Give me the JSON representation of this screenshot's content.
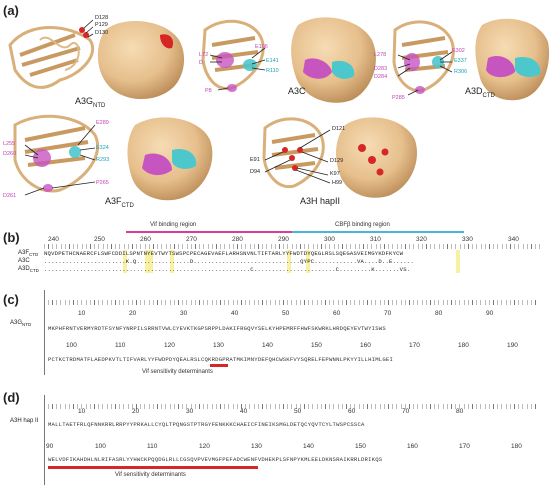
{
  "panel_labels": {
    "a": "(a)",
    "b": "(b)",
    "c": "(c)",
    "d": "(d)"
  },
  "panel_a": {
    "proteins": [
      {
        "name": "A3G",
        "sub": "NTD",
        "labels": [
          {
            "text": "D128",
            "color": "blk"
          },
          {
            "text": "P129",
            "color": "blk"
          },
          {
            "text": "D130",
            "color": "blk"
          }
        ]
      },
      {
        "name": "A3C",
        "sub": "",
        "labels": [
          {
            "text": "E106",
            "color": "mag"
          },
          {
            "text": "L72",
            "color": "mag"
          },
          {
            "text": "D",
            "color": "mag"
          },
          {
            "text": "E141",
            "color": "cyan"
          },
          {
            "text": "R110",
            "color": "cyan"
          },
          {
            "text": "P8",
            "color": "mag"
          }
        ]
      },
      {
        "name": "A3D",
        "sub": "CTD",
        "labels": [
          {
            "text": "E302",
            "color": "mag"
          },
          {
            "text": "L278",
            "color": "mag"
          },
          {
            "text": "E337",
            "color": "cyan"
          },
          {
            "text": "D283",
            "color": "mag"
          },
          {
            "text": "R306",
            "color": "cyan"
          },
          {
            "text": "D284",
            "color": "mag"
          },
          {
            "text": "P285",
            "color": "mag"
          }
        ]
      },
      {
        "name": "A3F",
        "sub": "CTD",
        "labels": [
          {
            "text": "E289",
            "color": "mag"
          },
          {
            "text": "L255",
            "color": "mag"
          },
          {
            "text": "E324",
            "color": "cyan"
          },
          {
            "text": "D260",
            "color": "mag"
          },
          {
            "text": "R293",
            "color": "cyan"
          },
          {
            "text": "D261",
            "color": "mag"
          },
          {
            "text": "P265",
            "color": "mag"
          }
        ]
      },
      {
        "name": "A3H hapII",
        "sub": "",
        "labels": [
          {
            "text": "D121",
            "color": "blk"
          },
          {
            "text": "E91",
            "color": "blk"
          },
          {
            "text": "D129",
            "color": "blk"
          },
          {
            "text": "D94",
            "color": "blk"
          },
          {
            "text": "K97",
            "color": "blk"
          },
          {
            "text": "H99",
            "color": "blk"
          }
        ]
      }
    ]
  },
  "panel_b": {
    "vif_region": "Vif binding region",
    "cbf_region": "CBFβ binding region",
    "numbers": [
      "240",
      "250",
      "260",
      "270",
      "280",
      "290",
      "300",
      "310",
      "320",
      "330",
      "340"
    ],
    "rows": [
      {
        "name": "A3F",
        "sub": "CTD",
        "seq": "NQVDPETHCNAERCFLSWFCDDILSPNTNYEVTWYTSWSPCPECAGEVAEFLARHSNVNLTIFTARLYYFWDTDYQEGLRSLSQEGASVEIMGYKDFKYCW"
      },
      {
        "name": "A3C",
        "sub": "",
        "seq": ".......................K.Q...............D..............................QYPC............VA....D..E......"
      },
      {
        "name": "A3D",
        "sub": "CTD",
        "seq": "..........................................................C.......................C.........K.......VS."
      }
    ]
  },
  "panel_c": {
    "row_name": "A3G",
    "row_sub": "NTD",
    "numbers_top": [
      "10",
      "20",
      "30",
      "40",
      "50",
      "60",
      "70",
      "80",
      "90"
    ],
    "seq_top": "MKPHFRNTVERMYRDTFSYNFYNRPILSRRNTVWLCYEVKTKGPSRPPLDAKIFRGQVYSELKYHPEMRFFHWFSKWRKLHRDQEYEVTWYISWS",
    "numbers_bot": [
      "100",
      "110",
      "120",
      "130",
      "140",
      "150",
      "160",
      "170",
      "180",
      "190"
    ],
    "seq_bot": "PCTKCTRDMATFLAEDPKVTLTIFVARLYYFWDPDYQEALRSLCQKRDGPRATMKIMNYDEFQHCWSKFVYSQRELFEPWNNLPKYYILLHIMLGEI",
    "vif_label": "Vif sensitivity determinants"
  },
  "panel_d": {
    "row_name": "A3H hap II",
    "numbers_top": [
      "10",
      "20",
      "30",
      "40",
      "50",
      "60",
      "70",
      "80"
    ],
    "seq_top": "MALLTAETFRLQFNNKRRLRRPYYPRKALLCYQLTPQNGSTPTRGYFENKKKCHAEICFINEIKSMGLDETQCYQVTCYLTWSPCSSCA",
    "numbers_bot": [
      "90",
      "100",
      "110",
      "120",
      "130",
      "140",
      "150",
      "160",
      "170",
      "180"
    ],
    "seq_bot": "WELVDFIKAHDHLNLRIFASRLYYHWCKPQQDGLRLLCGSQVPVEVMGFPEFADCWENFVDHEKPLSFNPYKMLEELDKNSRAIKRRLDRIKQS",
    "vif_label": "Vif sensitivity determinants"
  },
  "colors": {
    "tan": "#e8c493",
    "tan_dark": "#c9a06c",
    "magenta": "#c755c0",
    "cyan": "#4cc7cc",
    "red": "#d62626",
    "pink": "#d83c9c",
    "blue": "#4ab5d8",
    "yellow": "#f5ee8a"
  }
}
